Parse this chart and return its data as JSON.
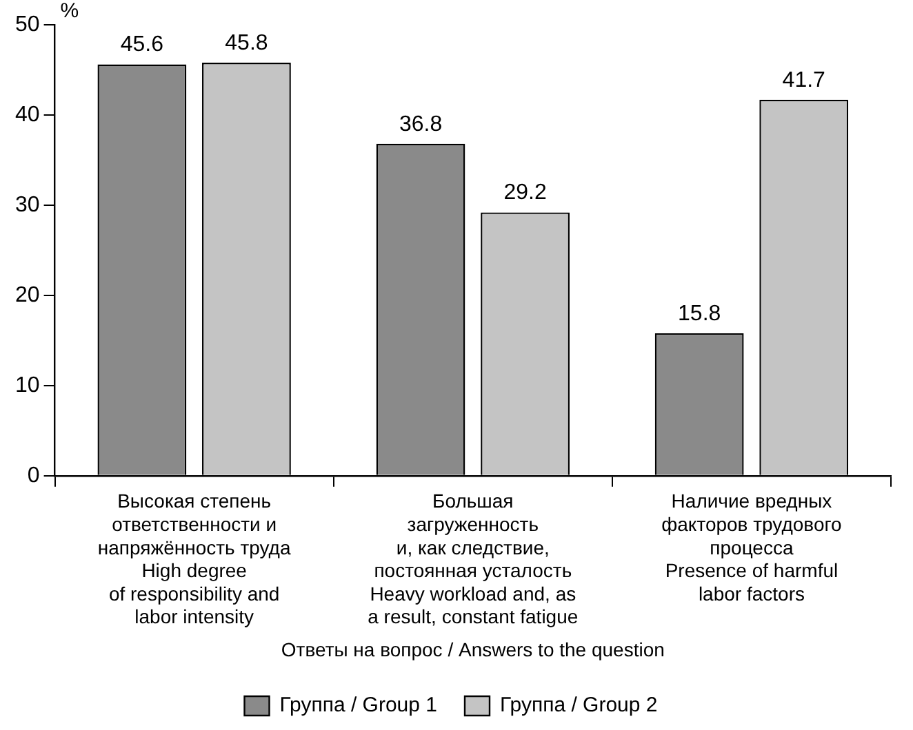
{
  "chart_data": {
    "type": "bar",
    "xlabel": "Ответы на вопрос / Answers to the question",
    "ylabel": "%",
    "categories": [
      "Высокая степень\nответственности и\nнапряжённость труда\nHigh degree\nof responsibility and\nlabor intensity",
      "Большая\nзагруженность\nи, как следствие,\nпостоянная усталость\nHeavy workload and, as\na result, constant fatigue",
      "Наличие вредных\nфакторов трудового\nпроцесса\nPresence of harmful\nlabor factors"
    ],
    "series": [
      {
        "name": "Группа / Group 1",
        "color": "#8a8a8a",
        "values": [
          45.6,
          36.8,
          15.8
        ]
      },
      {
        "name": "Группа / Group 2",
        "color": "#c4c4c4",
        "values": [
          45.8,
          29.2,
          41.7
        ]
      }
    ],
    "ylim": [
      0,
      50
    ],
    "yticks": [
      0,
      10,
      20,
      30,
      40,
      50
    ],
    "grid": false,
    "legend": "bottom",
    "data_labels": true
  }
}
